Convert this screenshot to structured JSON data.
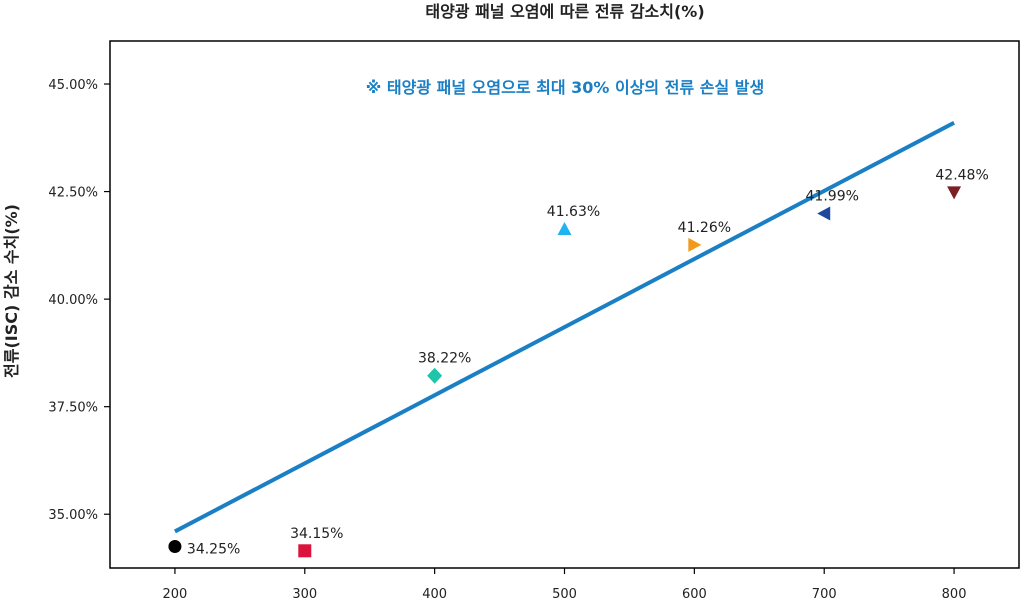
{
  "chart_data": {
    "type": "scatter",
    "title": "태양광 패널 오염에 따른 전류 감소치(%)",
    "ylabel": "전류(ISC) 감소 수치(%)",
    "xlabel": "",
    "xlim": [
      150,
      850
    ],
    "ylim": [
      33.75,
      46.0
    ],
    "xticks": [
      200,
      300,
      400,
      500,
      600,
      700,
      800
    ],
    "xtick_labels": [
      "200",
      "300",
      "400",
      "500",
      "600",
      "700",
      "800"
    ],
    "yticks": [
      35.0,
      37.5,
      40.0,
      42.5,
      45.0
    ],
    "ytick_labels": [
      "35.00%",
      "37.50%",
      "40.00%",
      "42.50%",
      "45.00%"
    ],
    "grid": false,
    "points": [
      {
        "x": 200,
        "y": 34.25,
        "label": "34.25%",
        "marker": "circle",
        "color": "#000000"
      },
      {
        "x": 300,
        "y": 34.15,
        "label": "34.15%",
        "marker": "square",
        "color": "#dc143c"
      },
      {
        "x": 400,
        "y": 38.22,
        "label": "38.22%",
        "marker": "diamond",
        "color": "#20c4a8"
      },
      {
        "x": 500,
        "y": 41.63,
        "label": "41.63%",
        "marker": "triangle-up",
        "color": "#1eb4f0"
      },
      {
        "x": 600,
        "y": 41.26,
        "label": "41.26%",
        "marker": "triangle-right",
        "color": "#f29a1b"
      },
      {
        "x": 700,
        "y": 41.99,
        "label": "41.99%",
        "marker": "triangle-left",
        "color": "#1f47a0"
      },
      {
        "x": 800,
        "y": 42.48,
        "label": "42.48%",
        "marker": "triangle-down",
        "color": "#7a1f24"
      }
    ],
    "trendline": {
      "x": [
        200,
        800
      ],
      "y": [
        34.6,
        44.1
      ],
      "color": "#1a7fc4"
    },
    "annotation": {
      "text": "※ 태양광 패널 오염으로 최대 30% 이상의 전류 손실 발생",
      "color": "#1a7fc4"
    }
  }
}
